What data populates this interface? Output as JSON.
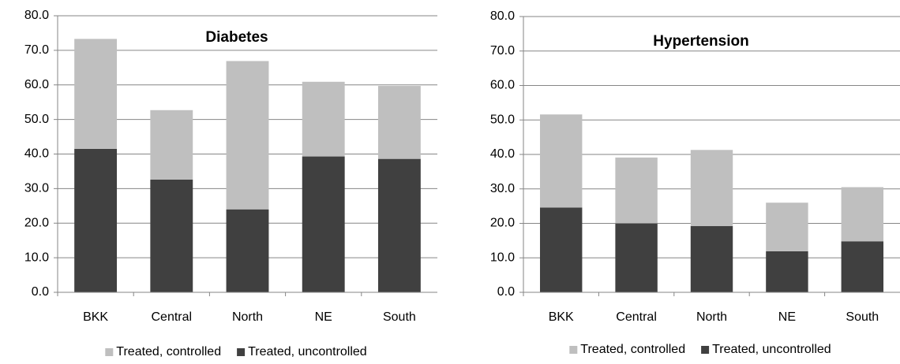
{
  "chart_data": [
    {
      "type": "stacked_bar",
      "title": "Diabetes",
      "categories": [
        "BKK",
        "Central",
        "North",
        "NE",
        "South"
      ],
      "series": [
        {
          "name": "Treated, controlled",
          "color": "#bfbfbf",
          "values": [
            31.8,
            20.1,
            42.9,
            21.6,
            21.1
          ]
        },
        {
          "name": "Treated, uncontrolled",
          "color": "#404040",
          "values": [
            41.5,
            32.6,
            24.0,
            39.3,
            38.6
          ]
        }
      ],
      "ylim": [
        0,
        80
      ],
      "yticks": [
        {
          "value": 0,
          "label": "0.0"
        },
        {
          "value": 10,
          "label": "10.0"
        },
        {
          "value": 20,
          "label": "20.0"
        },
        {
          "value": 30,
          "label": "30.0"
        },
        {
          "value": 40,
          "label": "40.0"
        },
        {
          "value": 50,
          "label": "50.0"
        },
        {
          "value": 60,
          "label": "60.0"
        },
        {
          "value": 70,
          "label": "70.0"
        },
        {
          "value": 80,
          "label": "80.0"
        }
      ],
      "grid": true,
      "legend": "bottom"
    },
    {
      "type": "stacked_bar",
      "title": "Hypertension",
      "categories": [
        "BKK",
        "Central",
        "North",
        "NE",
        "South"
      ],
      "series": [
        {
          "name": "Treated, controlled",
          "color": "#bfbfbf",
          "values": [
            27.0,
            19.1,
            22.1,
            14.1,
            15.7
          ]
        },
        {
          "name": "Treated, uncontrolled",
          "color": "#404040",
          "values": [
            24.6,
            20.0,
            19.2,
            11.9,
            14.8
          ]
        }
      ],
      "ylim": [
        0,
        80
      ],
      "yticks": [
        {
          "value": 0,
          "label": "0.0"
        },
        {
          "value": 10,
          "label": "10.0"
        },
        {
          "value": 20,
          "label": "20.0"
        },
        {
          "value": 30,
          "label": "30.0"
        },
        {
          "value": 40,
          "label": "40.0"
        },
        {
          "value": 50,
          "label": "50.0"
        },
        {
          "value": 60,
          "label": "60.0"
        },
        {
          "value": 70,
          "label": "70.0"
        },
        {
          "value": 80,
          "label": "80.0"
        }
      ],
      "grid": true,
      "legend": "bottom"
    }
  ]
}
